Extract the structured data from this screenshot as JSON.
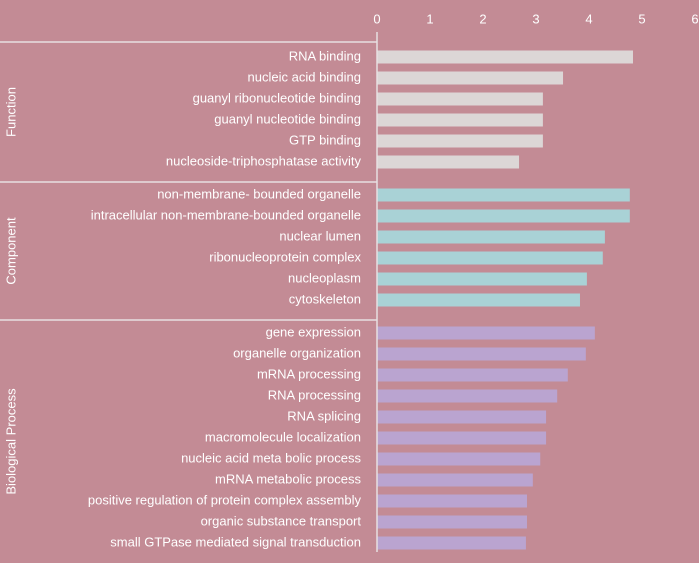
{
  "chart_data": {
    "type": "bar",
    "xlim": [
      0,
      6
    ],
    "xticks": [
      0,
      1,
      2,
      3,
      4,
      5,
      6
    ],
    "groups": [
      {
        "name": "Function",
        "color": "#dcd6d6",
        "categories": [
          "RNA binding",
          "nucleic acid binding",
          "guanyl ribonucleotide binding",
          "guanyl nucleotide binding",
          "GTP binding",
          "nucleoside-triphosphatase activity"
        ],
        "values": [
          4.83,
          3.51,
          3.13,
          3.13,
          3.13,
          2.68
        ]
      },
      {
        "name": "Component",
        "color": "#a9d2d6",
        "categories": [
          "non-membrane- bounded organelle",
          "intracellular non-membrane-bounded organelle",
          "nuclear lumen",
          "ribonucleoprotein complex",
          "nucleoplasm",
          "cytoskeleton"
        ],
        "values": [
          4.77,
          4.77,
          4.3,
          4.26,
          3.96,
          3.83
        ]
      },
      {
        "name": "Biological Process",
        "color": "#baa4d0",
        "categories": [
          "gene expression",
          "organelle organization",
          "mRNA processing",
          "RNA processing",
          "RNA splicing",
          "macromolecule localization",
          "nucleic acid meta bolic process",
          "mRNA metabolic process",
          "positive regulation of protein complex assembly",
          "organic substance transport",
          "small GTPase mediated signal transduction"
        ],
        "values": [
          4.11,
          3.94,
          3.6,
          3.4,
          3.19,
          3.19,
          3.08,
          2.94,
          2.83,
          2.83,
          2.81
        ]
      }
    ]
  }
}
